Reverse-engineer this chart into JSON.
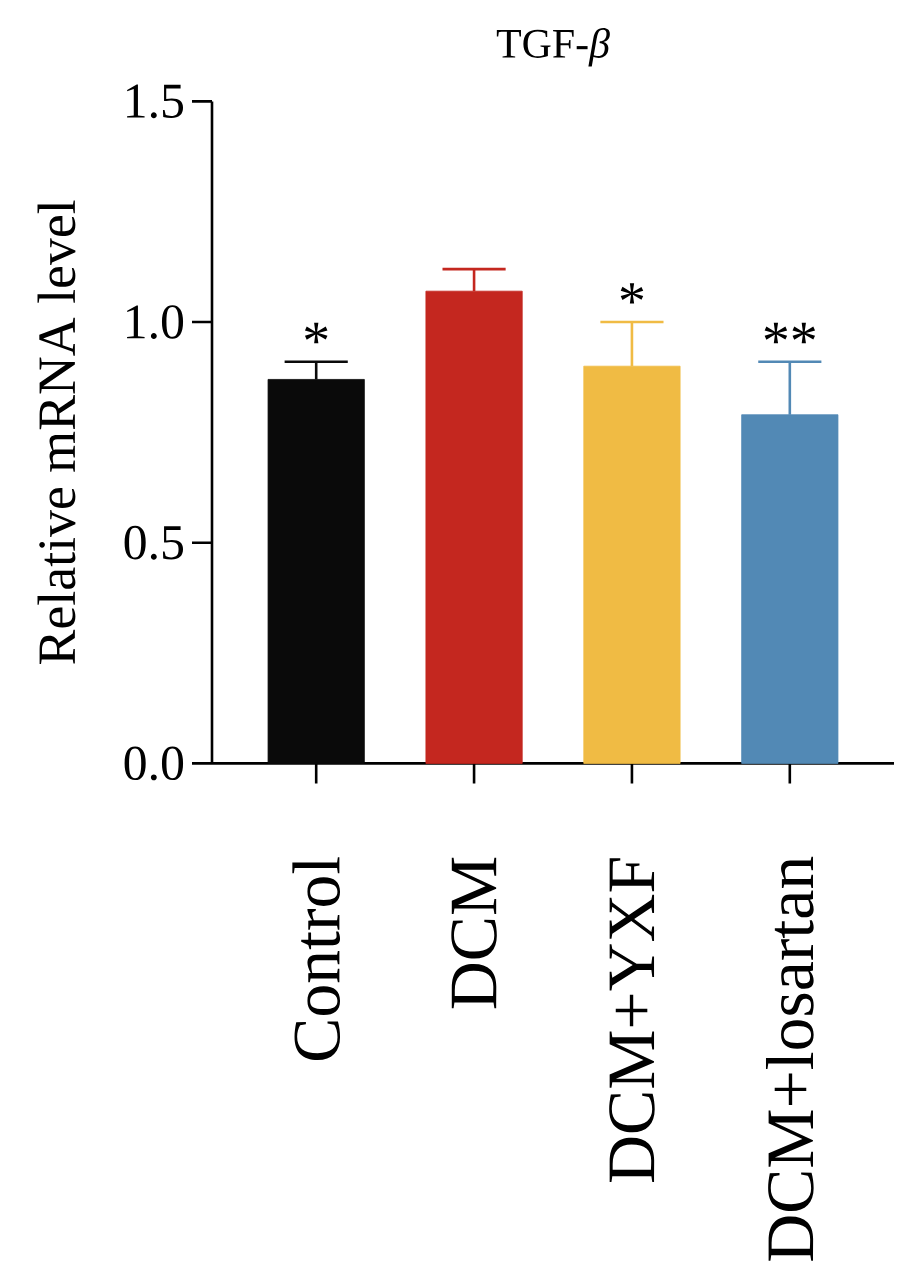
{
  "chart_data": {
    "type": "bar",
    "title": "TGF-*β*",
    "ylabel": "Relative mRNA level",
    "categories": [
      "Control",
      "DCM",
      "DCM+YXF",
      "DCM+losartan"
    ],
    "values": [
      0.87,
      1.07,
      0.9,
      0.79
    ],
    "errors": [
      [
        0.87,
        0.91
      ],
      [
        1.07,
        1.12
      ],
      [
        0.9,
        1.0
      ],
      [
        0.79,
        0.91
      ]
    ],
    "colors": [
      "#0a0a0a",
      "#c4271f",
      "#f0bb44",
      "#5289b5"
    ],
    "ylim": [
      0,
      1.5
    ],
    "yticks": [
      {
        "value": 0,
        "label": "0.0"
      },
      0.5,
      {
        "value": 1,
        "label": "1.0"
      },
      1.5
    ],
    "annotations": [
      {
        "text": "*",
        "x": "Control",
        "y": 0.91
      },
      {
        "text": "*",
        "x": "DCM+YXF",
        "y": 1.0
      },
      {
        "text": "**",
        "x": "DCM+losartan",
        "y": 0.91
      }
    ]
  }
}
